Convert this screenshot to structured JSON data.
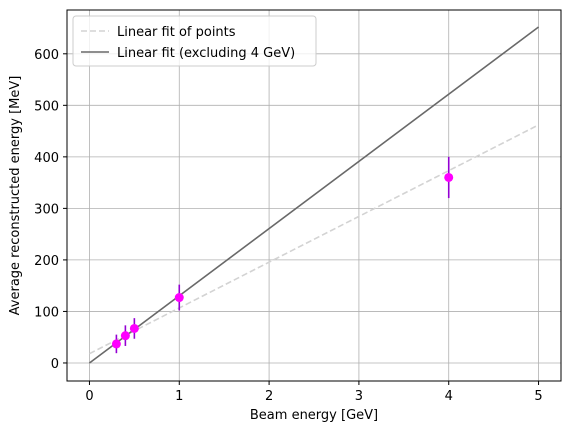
{
  "chart_data": {
    "type": "scatter",
    "title": "",
    "xlabel": "Beam energy [GeV]",
    "ylabel": "Average reconstructed energy [MeV]",
    "xlim": [
      -0.25,
      5.25
    ],
    "ylim": [
      -35,
      685
    ],
    "x_ticks": [
      0,
      1,
      2,
      3,
      4,
      5
    ],
    "y_ticks": [
      0,
      100,
      200,
      300,
      400,
      500,
      600
    ],
    "grid": true,
    "legend_position": "top-left",
    "points": {
      "color": "#ff00ff",
      "errorbar_color": "#9400d3",
      "x": [
        0.3,
        0.4,
        0.5,
        1.0,
        4.0
      ],
      "y": [
        37,
        53,
        67,
        127,
        360
      ],
      "yerr": [
        18,
        20,
        20,
        25,
        40
      ]
    },
    "lines": [
      {
        "name": "Linear fit of points",
        "color": "#d3d3d3",
        "dash": true,
        "x": [
          0,
          5
        ],
        "y": [
          18,
          462
        ]
      },
      {
        "name": "Linear fit (excluding 4 GeV)",
        "color": "#696969",
        "dash": false,
        "x": [
          0,
          5
        ],
        "y": [
          0,
          652
        ]
      }
    ]
  }
}
